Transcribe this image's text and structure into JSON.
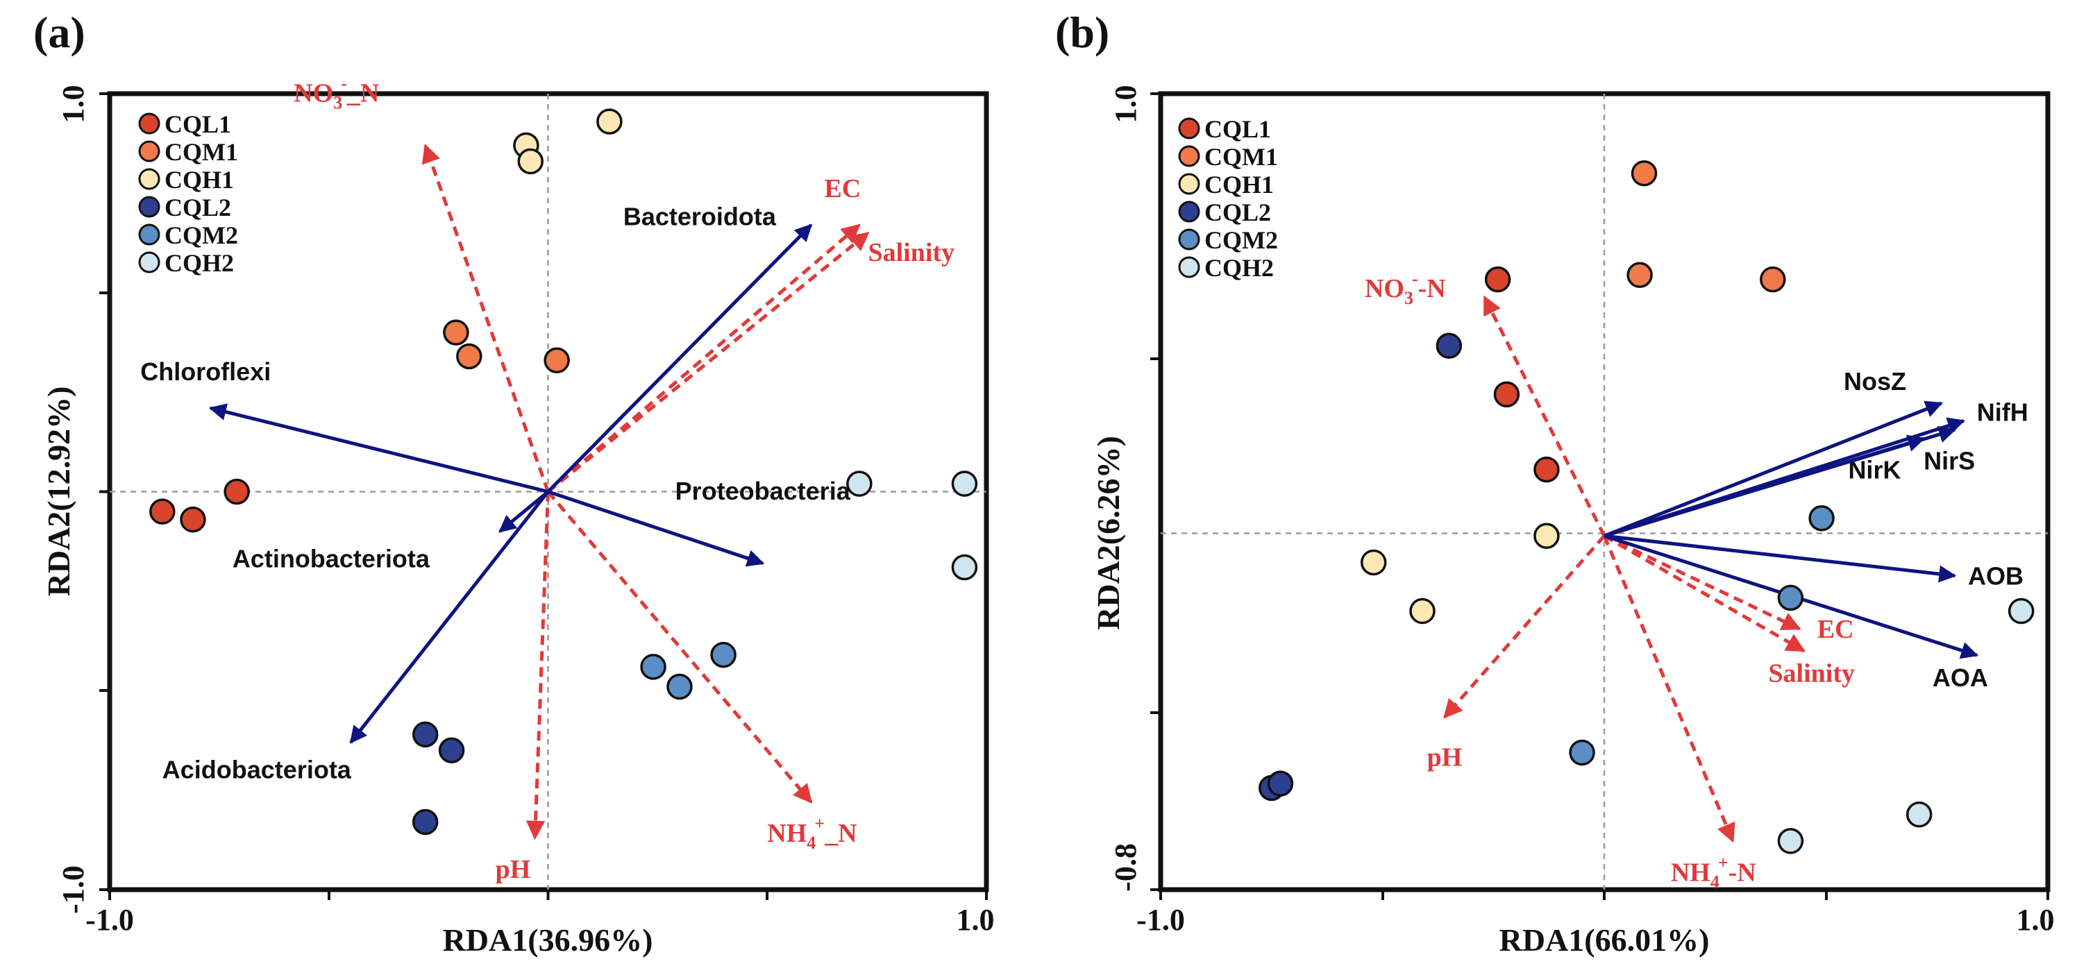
{
  "chart_data": [
    {
      "panel": "(a)",
      "type": "scatter",
      "title": "",
      "xlabel": "RDA1(36.96%)",
      "ylabel": "RDA2(12.92%)",
      "xlim": [
        -1.0,
        1.0
      ],
      "ylim": [
        -1.0,
        1.0
      ],
      "x_tick_labels": [
        "-1.0",
        "1.0"
      ],
      "y_tick_labels": [
        "-1.0",
        "1.0"
      ],
      "grid": false,
      "zero_lines": true,
      "legend": {
        "placement": "top-left",
        "entries": [
          {
            "name": "CQL1",
            "color": "#d9442c"
          },
          {
            "name": "CQM1",
            "color": "#f07a4a"
          },
          {
            "name": "CQH1",
            "color": "#fbe8b4"
          },
          {
            "name": "CQL2",
            "color": "#2d3f8f"
          },
          {
            "name": "CQM2",
            "color": "#5b8ec4"
          },
          {
            "name": "CQH2",
            "color": "#cfe6f0"
          }
        ]
      },
      "series": [
        {
          "name": "CQL1",
          "color": "#d9442c",
          "points": [
            [
              -0.88,
              -0.05
            ],
            [
              -0.81,
              -0.07
            ],
            [
              -0.71,
              0.0
            ]
          ]
        },
        {
          "name": "CQM1",
          "color": "#f07a4a",
          "points": [
            [
              -0.21,
              0.4
            ],
            [
              -0.18,
              0.34
            ],
            [
              0.02,
              0.33
            ]
          ]
        },
        {
          "name": "CQH1",
          "color": "#fbe8b4",
          "points": [
            [
              -0.05,
              0.87
            ],
            [
              -0.04,
              0.83
            ],
            [
              0.14,
              0.93
            ]
          ]
        },
        {
          "name": "CQL2",
          "color": "#2d3f8f",
          "points": [
            [
              -0.28,
              -0.61
            ],
            [
              -0.22,
              -0.65
            ],
            [
              -0.28,
              -0.83
            ]
          ]
        },
        {
          "name": "CQM2",
          "color": "#5b8ec4",
          "points": [
            [
              0.24,
              -0.44
            ],
            [
              0.3,
              -0.49
            ],
            [
              0.4,
              -0.41
            ]
          ]
        },
        {
          "name": "CQH2",
          "color": "#cfe6f0",
          "points": [
            [
              0.71,
              0.02
            ],
            [
              0.95,
              0.02
            ],
            [
              0.95,
              -0.19
            ]
          ]
        }
      ],
      "species_arrows": [
        {
          "name": "Bacteroidota",
          "x": 0.6,
          "y": 0.67,
          "label_anchor": "end",
          "label_dx": -0.08,
          "label_dy": 0.0
        },
        {
          "name": "Chloroflexi",
          "x": -0.77,
          "y": 0.21,
          "label_anchor": "start",
          "label_dx": -0.16,
          "label_dy": 0.07
        },
        {
          "name": "Actinobacteriota",
          "x": -0.11,
          "y": -0.1,
          "label_anchor": "start",
          "label_dx": -0.61,
          "label_dy": -0.09
        },
        {
          "name": "Proteobacteria",
          "x": 0.49,
          "y": -0.18,
          "label_anchor": "start",
          "label_dx": -0.2,
          "label_dy": 0.16
        },
        {
          "name": "Acidobacteriota",
          "x": -0.45,
          "y": -0.63,
          "label_anchor": "start",
          "label_dx": -0.43,
          "label_dy": -0.09
        }
      ],
      "env_arrows": [
        {
          "name": "NO3--N",
          "display": [
            "NO",
            "3",
            "-",
            "_N"
          ],
          "x": -0.28,
          "y": 0.87,
          "label_anchor": "start",
          "label_dx": -0.3,
          "label_dy": 0.11
        },
        {
          "name": "EC",
          "x": 0.71,
          "y": 0.67,
          "label_anchor": "start",
          "label_dx": -0.08,
          "label_dy": 0.07
        },
        {
          "name": "Salinity",
          "x": 0.73,
          "y": 0.65,
          "label_anchor": "start",
          "label_dx": 0.0,
          "label_dy": -0.07
        },
        {
          "name": "pH",
          "x": -0.03,
          "y": -0.87,
          "label_anchor": "middle",
          "label_dx": -0.05,
          "label_dy": -0.1
        },
        {
          "name": "NH4+_N",
          "display": [
            "NH",
            "4",
            "+",
            "_N"
          ],
          "x": 0.6,
          "y": -0.78,
          "label_anchor": "start",
          "label_dx": -0.1,
          "label_dy": -0.1
        }
      ]
    },
    {
      "panel": "(b)",
      "type": "scatter",
      "title": "",
      "xlabel": "RDA1(66.01%)",
      "ylabel": "RDA2(6.26%)",
      "xlim": [
        -1.0,
        1.0
      ],
      "ylim": [
        -0.8,
        1.0
      ],
      "x_tick_labels": [
        "-1.0",
        "1.0"
      ],
      "y_tick_labels": [
        "-0.8",
        "1.0"
      ],
      "grid": false,
      "zero_lines": true,
      "legend": {
        "placement": "top-left",
        "entries": [
          {
            "name": "CQL1",
            "color": "#d9442c"
          },
          {
            "name": "CQM1",
            "color": "#f07a4a"
          },
          {
            "name": "CQH1",
            "color": "#fbe8b4"
          },
          {
            "name": "CQL2",
            "color": "#2d3f8f"
          },
          {
            "name": "CQM2",
            "color": "#5b8ec4"
          },
          {
            "name": "CQH2",
            "color": "#cfe6f0"
          }
        ]
      },
      "series": [
        {
          "name": "CQL1",
          "color": "#d9442c",
          "points": [
            [
              -0.24,
              0.58
            ],
            [
              -0.22,
              0.32
            ],
            [
              -0.13,
              0.15
            ]
          ]
        },
        {
          "name": "CQM1",
          "color": "#f07a4a",
          "points": [
            [
              0.09,
              0.82
            ],
            [
              0.08,
              0.59
            ],
            [
              0.38,
              0.58
            ]
          ]
        },
        {
          "name": "CQH1",
          "color": "#fbe8b4",
          "points": [
            [
              -0.52,
              -0.06
            ],
            [
              -0.41,
              -0.17
            ],
            [
              -0.13,
              0.0
            ]
          ]
        },
        {
          "name": "CQL2",
          "color": "#2d3f8f",
          "points": [
            [
              -0.35,
              0.43
            ],
            [
              -0.75,
              -0.57
            ],
            [
              -0.73,
              -0.56
            ]
          ]
        },
        {
          "name": "CQM2",
          "color": "#5b8ec4",
          "points": [
            [
              0.49,
              0.04
            ],
            [
              0.42,
              -0.14
            ],
            [
              -0.05,
              -0.49
            ]
          ]
        },
        {
          "name": "CQH2",
          "color": "#cfe6f0",
          "points": [
            [
              0.94,
              -0.17
            ],
            [
              0.71,
              -0.63
            ],
            [
              0.42,
              -0.69
            ]
          ]
        }
      ],
      "species_arrows": [
        {
          "name": "NosZ",
          "x": 0.76,
          "y": 0.3,
          "label_anchor": "start",
          "label_dx": -0.22,
          "label_dy": 0.03
        },
        {
          "name": "NifH",
          "x": 0.81,
          "y": 0.26,
          "label_anchor": "start",
          "label_dx": 0.03,
          "label_dy": 0.0
        },
        {
          "name": "NirK",
          "x": 0.72,
          "y": 0.22,
          "label_anchor": "start",
          "label_dx": -0.17,
          "label_dy": -0.09
        },
        {
          "name": "NirS",
          "x": 0.79,
          "y": 0.24,
          "label_anchor": "start",
          "label_dx": -0.07,
          "label_dy": -0.09
        },
        {
          "name": "AOB",
          "x": 0.79,
          "y": -0.09,
          "label_anchor": "start",
          "label_dx": 0.03,
          "label_dy": -0.02
        },
        {
          "name": "AOA",
          "x": 0.84,
          "y": -0.27,
          "label_anchor": "start",
          "label_dx": -0.1,
          "label_dy": -0.07
        }
      ],
      "env_arrows": [
        {
          "name": "NO3--N",
          "display": [
            "NO",
            "3",
            "-",
            "-N"
          ],
          "x": -0.27,
          "y": 0.54,
          "label_anchor": "start",
          "label_dx": -0.27,
          "label_dy": 0.0
        },
        {
          "name": "EC",
          "x": 0.44,
          "y": -0.21,
          "label_anchor": "start",
          "label_dx": 0.04,
          "label_dy": -0.02
        },
        {
          "name": "Salinity",
          "x": 0.45,
          "y": -0.26,
          "label_anchor": "start",
          "label_dx": -0.08,
          "label_dy": -0.07
        },
        {
          "name": "pH",
          "x": -0.36,
          "y": -0.41,
          "label_anchor": "middle",
          "label_dx": 0.0,
          "label_dy": -0.11
        },
        {
          "name": "NH4+-N",
          "display": [
            "NH",
            "4",
            "+",
            "-N"
          ],
          "x": 0.29,
          "y": -0.69,
          "label_anchor": "start",
          "label_dx": -0.14,
          "label_dy": -0.09
        }
      ]
    }
  ]
}
